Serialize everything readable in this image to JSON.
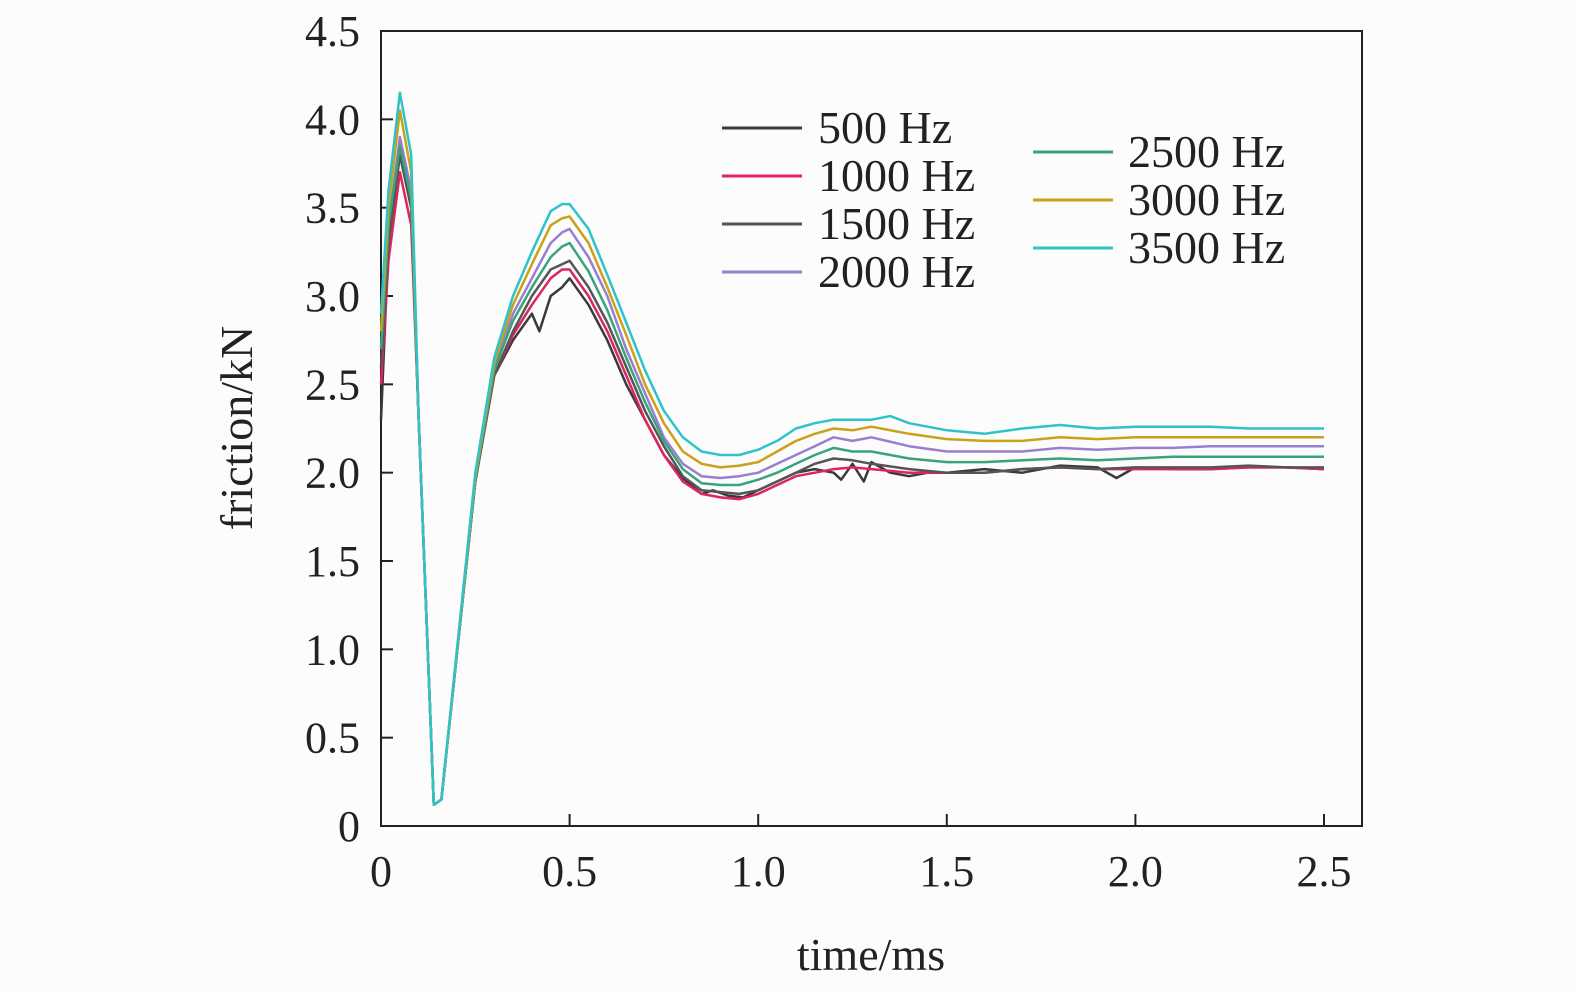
{
  "chart_data": {
    "type": "line",
    "title": "",
    "xlabel": "time/ms",
    "ylabel": "friction/kN",
    "xlim": [
      0,
      2.5
    ],
    "ylim": [
      0,
      4.5
    ],
    "x_ticks": [
      0,
      0.5,
      1.0,
      1.5,
      2.0,
      2.5
    ],
    "x_tick_labels": [
      "0",
      "0.5",
      "1.0",
      "1.5",
      "2.0",
      "2.5"
    ],
    "y_ticks": [
      0,
      0.5,
      1.0,
      1.5,
      2.0,
      2.5,
      3.0,
      3.5,
      4.0,
      4.5
    ],
    "y_tick_labels": [
      "0",
      "0.5",
      "1.0",
      "1.5",
      "2.0",
      "2.5",
      "3.0",
      "3.5",
      "4.0",
      "4.5"
    ],
    "grid": false,
    "legend_position": "top-right",
    "series": [
      {
        "name": "500 Hz",
        "color": "#3a3a3a",
        "x": [
          0,
          0.02,
          0.05,
          0.08,
          0.1,
          0.14,
          0.16,
          0.2,
          0.25,
          0.3,
          0.35,
          0.4,
          0.42,
          0.45,
          0.48,
          0.5,
          0.55,
          0.6,
          0.65,
          0.7,
          0.75,
          0.8,
          0.85,
          0.88,
          0.92,
          0.96,
          1.0,
          1.05,
          1.1,
          1.15,
          1.2,
          1.22,
          1.25,
          1.28,
          1.3,
          1.35,
          1.4,
          1.45,
          1.5,
          1.6,
          1.7,
          1.8,
          1.9,
          1.95,
          2.0,
          2.1,
          2.2,
          2.3,
          2.4,
          2.5
        ],
        "y": [
          2.3,
          3.3,
          3.8,
          3.5,
          2.3,
          0.12,
          0.15,
          0.95,
          1.95,
          2.55,
          2.75,
          2.9,
          2.8,
          3.0,
          3.05,
          3.1,
          2.95,
          2.75,
          2.5,
          2.3,
          2.1,
          1.97,
          1.88,
          1.9,
          1.87,
          1.86,
          1.9,
          1.95,
          2.0,
          2.02,
          2.0,
          1.96,
          2.05,
          1.95,
          2.06,
          2.0,
          1.98,
          2.0,
          2.0,
          2.02,
          2.0,
          2.04,
          2.03,
          1.97,
          2.03,
          2.02,
          2.02,
          2.03,
          2.03,
          2.02
        ]
      },
      {
        "name": "1000 Hz",
        "color": "#e0245e",
        "x": [
          0,
          0.02,
          0.05,
          0.08,
          0.1,
          0.14,
          0.16,
          0.2,
          0.25,
          0.3,
          0.35,
          0.4,
          0.45,
          0.48,
          0.5,
          0.55,
          0.6,
          0.65,
          0.7,
          0.75,
          0.8,
          0.85,
          0.9,
          0.95,
          1.0,
          1.05,
          1.1,
          1.15,
          1.2,
          1.25,
          1.3,
          1.4,
          1.5,
          1.6,
          1.7,
          1.8,
          1.9,
          2.0,
          2.1,
          2.2,
          2.3,
          2.4,
          2.5
        ],
        "y": [
          2.5,
          3.2,
          3.7,
          3.4,
          2.3,
          0.12,
          0.15,
          0.95,
          1.95,
          2.55,
          2.78,
          2.95,
          3.1,
          3.15,
          3.15,
          3.0,
          2.8,
          2.55,
          2.3,
          2.1,
          1.95,
          1.88,
          1.86,
          1.85,
          1.88,
          1.93,
          1.98,
          2.0,
          2.02,
          2.03,
          2.02,
          2.0,
          2.0,
          2.0,
          2.02,
          2.03,
          2.02,
          2.02,
          2.02,
          2.02,
          2.03,
          2.03,
          2.02
        ]
      },
      {
        "name": "1500 Hz",
        "color": "#555555",
        "x": [
          0,
          0.02,
          0.05,
          0.08,
          0.1,
          0.14,
          0.16,
          0.2,
          0.25,
          0.3,
          0.35,
          0.4,
          0.45,
          0.48,
          0.5,
          0.55,
          0.6,
          0.65,
          0.7,
          0.75,
          0.8,
          0.85,
          0.9,
          0.95,
          1.0,
          1.05,
          1.1,
          1.15,
          1.2,
          1.25,
          1.3,
          1.4,
          1.5,
          1.6,
          1.7,
          1.8,
          1.9,
          2.0,
          2.1,
          2.2,
          2.3,
          2.4,
          2.5
        ],
        "y": [
          2.6,
          3.3,
          3.8,
          3.5,
          2.3,
          0.12,
          0.15,
          0.95,
          1.95,
          2.55,
          2.8,
          3.0,
          3.15,
          3.18,
          3.2,
          3.05,
          2.85,
          2.6,
          2.35,
          2.15,
          1.98,
          1.9,
          1.89,
          1.88,
          1.9,
          1.95,
          2.0,
          2.05,
          2.08,
          2.07,
          2.05,
          2.02,
          2.0,
          2.0,
          2.02,
          2.03,
          2.02,
          2.03,
          2.03,
          2.03,
          2.04,
          2.03,
          2.03
        ]
      },
      {
        "name": "2000 Hz",
        "color": "#9a7fd1",
        "x": [
          0,
          0.02,
          0.05,
          0.08,
          0.1,
          0.14,
          0.16,
          0.2,
          0.25,
          0.3,
          0.35,
          0.4,
          0.45,
          0.48,
          0.5,
          0.55,
          0.6,
          0.65,
          0.7,
          0.75,
          0.8,
          0.85,
          0.9,
          0.95,
          1.0,
          1.05,
          1.1,
          1.15,
          1.2,
          1.25,
          1.3,
          1.4,
          1.5,
          1.6,
          1.7,
          1.8,
          1.9,
          2.0,
          2.1,
          2.2,
          2.3,
          2.4,
          2.5
        ],
        "y": [
          2.7,
          3.4,
          3.9,
          3.6,
          2.3,
          0.12,
          0.15,
          0.95,
          1.97,
          2.6,
          2.9,
          3.1,
          3.3,
          3.36,
          3.38,
          3.22,
          3.0,
          2.7,
          2.45,
          2.2,
          2.05,
          1.98,
          1.97,
          1.98,
          2.0,
          2.05,
          2.1,
          2.15,
          2.2,
          2.18,
          2.2,
          2.15,
          2.12,
          2.12,
          2.12,
          2.14,
          2.13,
          2.14,
          2.14,
          2.15,
          2.15,
          2.15,
          2.15
        ]
      },
      {
        "name": "2500 Hz",
        "color": "#3aa37a",
        "x": [
          0,
          0.02,
          0.05,
          0.08,
          0.1,
          0.14,
          0.16,
          0.2,
          0.25,
          0.3,
          0.35,
          0.4,
          0.45,
          0.48,
          0.5,
          0.55,
          0.6,
          0.65,
          0.7,
          0.75,
          0.8,
          0.85,
          0.9,
          0.95,
          1.0,
          1.05,
          1.1,
          1.15,
          1.2,
          1.25,
          1.3,
          1.4,
          1.5,
          1.6,
          1.7,
          1.8,
          1.9,
          2.0,
          2.1,
          2.2,
          2.3,
          2.4,
          2.5
        ],
        "y": [
          2.7,
          3.4,
          3.85,
          3.55,
          2.3,
          0.12,
          0.15,
          0.95,
          1.96,
          2.58,
          2.86,
          3.05,
          3.22,
          3.28,
          3.3,
          3.14,
          2.92,
          2.65,
          2.4,
          2.18,
          2.02,
          1.94,
          1.93,
          1.93,
          1.96,
          2.0,
          2.05,
          2.1,
          2.14,
          2.12,
          2.12,
          2.08,
          2.06,
          2.06,
          2.07,
          2.08,
          2.07,
          2.08,
          2.09,
          2.09,
          2.09,
          2.09,
          2.09
        ]
      },
      {
        "name": "3000 Hz",
        "color": "#c9a21a",
        "x": [
          0,
          0.02,
          0.05,
          0.08,
          0.1,
          0.14,
          0.16,
          0.2,
          0.25,
          0.3,
          0.35,
          0.4,
          0.45,
          0.48,
          0.5,
          0.55,
          0.6,
          0.65,
          0.7,
          0.75,
          0.8,
          0.85,
          0.9,
          0.95,
          1.0,
          1.05,
          1.1,
          1.15,
          1.2,
          1.25,
          1.3,
          1.4,
          1.5,
          1.6,
          1.7,
          1.8,
          1.9,
          2.0,
          2.1,
          2.2,
          2.3,
          2.4,
          2.5
        ],
        "y": [
          2.8,
          3.5,
          4.05,
          3.7,
          2.3,
          0.12,
          0.15,
          0.96,
          1.98,
          2.62,
          2.95,
          3.18,
          3.4,
          3.44,
          3.45,
          3.3,
          3.05,
          2.78,
          2.5,
          2.28,
          2.12,
          2.05,
          2.03,
          2.04,
          2.06,
          2.12,
          2.18,
          2.22,
          2.25,
          2.24,
          2.26,
          2.22,
          2.19,
          2.18,
          2.18,
          2.2,
          2.19,
          2.2,
          2.2,
          2.2,
          2.2,
          2.2,
          2.2
        ]
      },
      {
        "name": "3500 Hz",
        "color": "#2fc3c9",
        "x": [
          0,
          0.02,
          0.05,
          0.08,
          0.1,
          0.14,
          0.16,
          0.2,
          0.25,
          0.3,
          0.35,
          0.4,
          0.45,
          0.48,
          0.5,
          0.55,
          0.6,
          0.65,
          0.7,
          0.75,
          0.8,
          0.85,
          0.9,
          0.95,
          1.0,
          1.05,
          1.1,
          1.15,
          1.2,
          1.25,
          1.3,
          1.35,
          1.4,
          1.5,
          1.6,
          1.7,
          1.8,
          1.9,
          2.0,
          2.1,
          2.2,
          2.3,
          2.4,
          2.5
        ],
        "y": [
          2.9,
          3.6,
          4.15,
          3.8,
          2.3,
          0.12,
          0.15,
          0.97,
          2.0,
          2.65,
          3.0,
          3.25,
          3.48,
          3.52,
          3.52,
          3.38,
          3.12,
          2.85,
          2.58,
          2.35,
          2.2,
          2.12,
          2.1,
          2.1,
          2.13,
          2.18,
          2.25,
          2.28,
          2.3,
          2.3,
          2.3,
          2.32,
          2.28,
          2.24,
          2.22,
          2.25,
          2.27,
          2.25,
          2.26,
          2.26,
          2.26,
          2.25,
          2.25,
          2.25
        ]
      }
    ]
  }
}
